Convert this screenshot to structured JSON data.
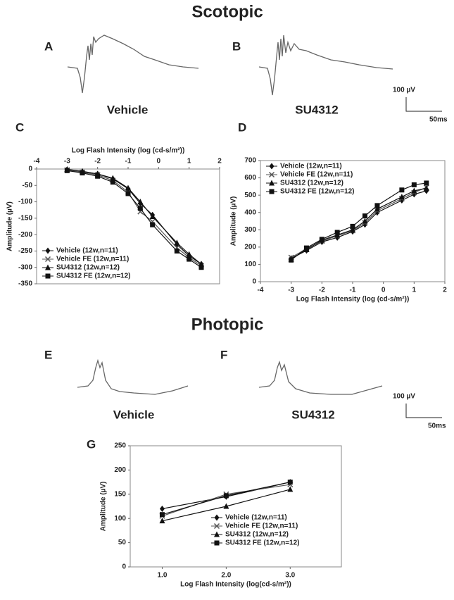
{
  "sections": [
    {
      "title": "Scotopic",
      "letters": [
        "A",
        "B"
      ],
      "traces": [
        "Vehicle",
        "SU4312"
      ],
      "scale": [
        "100 µV",
        "50ms"
      ]
    },
    {
      "title": "Photopic",
      "letters": [
        "E",
        "F"
      ],
      "traces": [
        "Vehicle",
        "SU4312"
      ],
      "scale": [
        "100 µV",
        "50ms"
      ]
    }
  ],
  "chart_data": [
    {
      "type": "line",
      "label": "C",
      "xaxis": "top",
      "xlabel": "Log Flash Intensity (log (cd-s/m²))",
      "ylabel": "Amplitude (µV)",
      "x": [
        -3,
        -2.5,
        -2,
        -1.5,
        -1,
        -0.6,
        -0.2,
        0.6,
        1,
        1.4
      ],
      "xlim": [
        -4,
        2
      ],
      "xticks": [
        -4,
        -3,
        -2,
        -1,
        0,
        1,
        2
      ],
      "ylim": [
        -350,
        0
      ],
      "yticks": [
        0,
        -50,
        -100,
        -150,
        -200,
        -250,
        -300,
        -350
      ],
      "series": [
        {
          "name": "Vehicle (12w,n=11)",
          "color": "#111111",
          "marker": "diamond",
          "values": [
            -2,
            -8,
            -15,
            -30,
            -60,
            -105,
            -140,
            -230,
            -265,
            -290
          ]
        },
        {
          "name": "Vehicle FE (12w,n=11)",
          "color": "#555555",
          "marker": "x",
          "values": [
            -3,
            -10,
            -18,
            -35,
            -70,
            -130,
            -160,
            -240,
            -270,
            -295
          ]
        },
        {
          "name": "SU4312  (12w,n=12)",
          "color": "#111111",
          "marker": "triangle",
          "values": [
            -1,
            -7,
            -15,
            -28,
            -58,
            -100,
            -145,
            -225,
            -260,
            -290
          ]
        },
        {
          "name": "SU4312 FE (12w,n=12)",
          "color": "#111111",
          "marker": "square",
          "values": [
            -5,
            -12,
            -22,
            -40,
            -75,
            -120,
            -170,
            -250,
            -275,
            -300
          ]
        }
      ]
    },
    {
      "type": "line",
      "label": "D",
      "xaxis": "bottom",
      "xlabel": "Log Flash Intensity (log (cd-s/m²))",
      "ylabel": "Amplitude (µV)",
      "x": [
        -3,
        -2.5,
        -2,
        -1.5,
        -1,
        -0.6,
        -0.2,
        0.6,
        1,
        1.4
      ],
      "xlim": [
        -4,
        2
      ],
      "xticks": [
        -4,
        -3,
        -2,
        -1,
        0,
        1,
        2
      ],
      "ylim": [
        0,
        700
      ],
      "yticks": [
        0,
        100,
        200,
        300,
        400,
        500,
        600,
        700
      ],
      "series": [
        {
          "name": "Vehicle (12w,n=11)",
          "color": "#111111",
          "marker": "diamond",
          "values": [
            135,
            180,
            230,
            255,
            290,
            330,
            400,
            470,
            505,
            525
          ]
        },
        {
          "name": "Vehicle FE (12w,n=11)",
          "color": "#555555",
          "marker": "x",
          "values": [
            140,
            190,
            235,
            265,
            295,
            340,
            410,
            480,
            515,
            545
          ]
        },
        {
          "name": "SU4312  (12w,n=12)",
          "color": "#111111",
          "marker": "triangle",
          "values": [
            130,
            185,
            240,
            270,
            300,
            350,
            420,
            490,
            525,
            540
          ]
        },
        {
          "name": "SU4312 FE (12w,n=12)",
          "color": "#111111",
          "marker": "square",
          "values": [
            125,
            195,
            245,
            285,
            320,
            380,
            440,
            530,
            560,
            570
          ]
        }
      ]
    },
    {
      "type": "line",
      "label": "G",
      "xaxis": "bottom",
      "xlabel": "Log Flash Intensity (log(cd-s/m²))",
      "ylabel": "Amplitude (µV)",
      "x": [
        1,
        2,
        3
      ],
      "xlim": [
        0.5,
        3.8
      ],
      "xticks": [
        {
          "value": 1,
          "label": "1.0"
        },
        {
          "value": 2,
          "label": "2.0"
        },
        {
          "value": 3,
          "label": "3.0"
        }
      ],
      "ylim": [
        0,
        250
      ],
      "yticks": [
        0,
        50,
        100,
        150,
        200,
        250
      ],
      "series": [
        {
          "name": "Vehicle (12w,n=11)",
          "color": "#111111",
          "marker": "diamond",
          "values": [
            120,
            145,
            175
          ]
        },
        {
          "name": "Vehicle FE (12w,n=11)",
          "color": "#555555",
          "marker": "x",
          "values": [
            105,
            150,
            170
          ]
        },
        {
          "name": "SU4312  (12w,n=12)",
          "color": "#111111",
          "marker": "triangle",
          "values": [
            95,
            125,
            160
          ]
        },
        {
          "name": "SU4312 FE (12w,n=12)",
          "color": "#111111",
          "marker": "square",
          "values": [
            108,
            147,
            175
          ]
        }
      ]
    }
  ]
}
